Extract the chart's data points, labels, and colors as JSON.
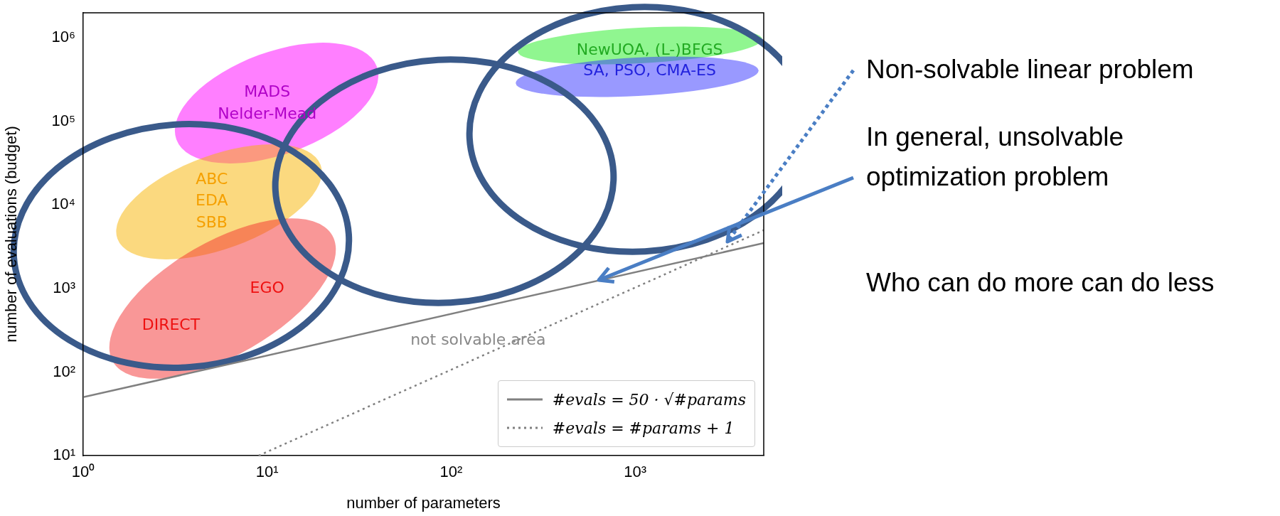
{
  "chart_data": {
    "type": "line",
    "xlabel": "number of parameters",
    "ylabel": "number of evaluations (budget)",
    "log": "xy",
    "xlim": [
      1,
      5000
    ],
    "ylim": [
      10,
      2000000
    ],
    "xticks": [
      {
        "value": 1,
        "label": "10⁰"
      },
      {
        "value": 10,
        "label": "10¹"
      },
      {
        "value": 100,
        "label": "10²"
      },
      {
        "value": 1000,
        "label": "10³"
      }
    ],
    "yticks": [
      {
        "value": 10,
        "label": "10¹"
      },
      {
        "value": 100,
        "label": "10²"
      },
      {
        "value": 1000,
        "label": "10³"
      },
      {
        "value": 10000,
        "label": "10⁴"
      },
      {
        "value": 100000,
        "label": "10⁵"
      },
      {
        "value": 1000000,
        "label": "10⁶"
      }
    ],
    "series": [
      {
        "name": "#evals = 50 · √#params",
        "color": "#808080",
        "line_style": "solid",
        "x": [
          1,
          5000
        ],
        "values": [
          50,
          3500
        ]
      },
      {
        "name": "#evals = #params + 1",
        "color": "#808080",
        "line_style": "dotted",
        "x": [
          9,
          5000
        ],
        "values": [
          10,
          5000
        ]
      }
    ],
    "legend": "bottom right",
    "grid": false,
    "marker": "none",
    "annotations": [
      "MADS",
      "Nelder-Mead",
      "ABC",
      "EDA",
      "SBB",
      "EGO",
      "DIRECT",
      "NewUOA, (L-)BFGS",
      "SA, PSO, CMA-ES",
      "not solvable area",
      "Non-solvable linear problem",
      "In general, unsolvable optimization problem",
      "Who can do more can do less"
    ]
  }
}
